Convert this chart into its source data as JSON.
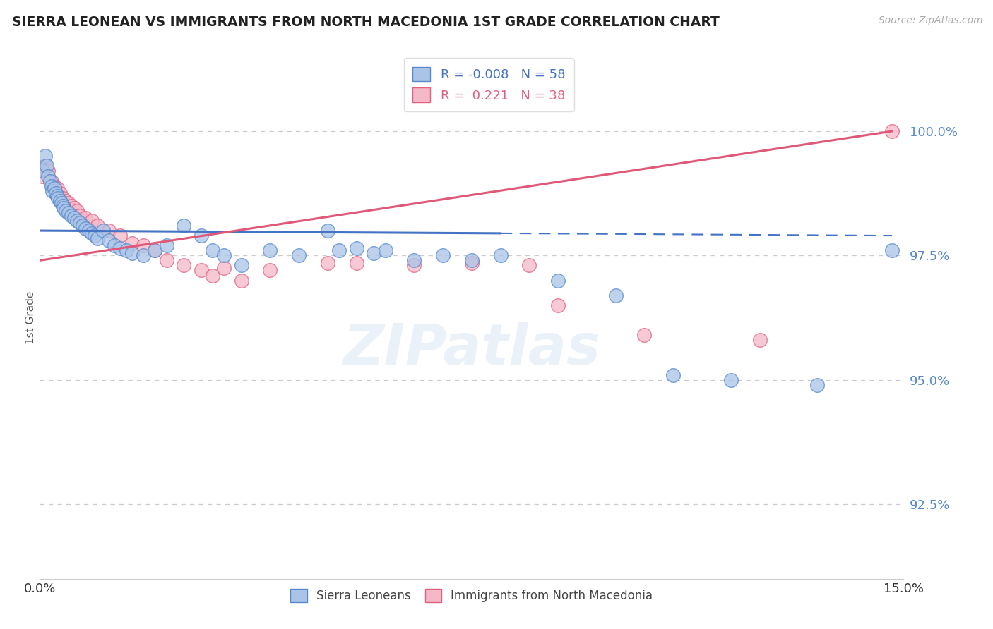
{
  "title": "SIERRA LEONEAN VS IMMIGRANTS FROM NORTH MACEDONIA 1ST GRADE CORRELATION CHART",
  "source": "Source: ZipAtlas.com",
  "ylabel": "1st Grade",
  "xlim": [
    0.0,
    15.0
  ],
  "ylim": [
    91.0,
    101.5
  ],
  "yticks": [
    92.5,
    95.0,
    97.5,
    100.0
  ],
  "ytick_labels": [
    "92.5%",
    "95.0%",
    "97.5%",
    "100.0%"
  ],
  "xtick_labels": [
    "0.0%",
    "15.0%"
  ],
  "blue_label": "Sierra Leoneans",
  "pink_label": "Immigrants from North Macedonia",
  "blue_R": -0.008,
  "blue_N": 58,
  "pink_R": 0.221,
  "pink_N": 38,
  "blue_color": "#aac4e8",
  "pink_color": "#f5b8c8",
  "blue_edge_color": "#5588cc",
  "pink_edge_color": "#e06080",
  "blue_line_color": "#4472c4",
  "pink_line_color": "#e05878",
  "background_color": "#ffffff",
  "watermark_text": "ZIPatlas",
  "blue_x": [
    0.05,
    0.1,
    0.12,
    0.15,
    0.18,
    0.2,
    0.22,
    0.25,
    0.28,
    0.3,
    0.32,
    0.35,
    0.38,
    0.4,
    0.42,
    0.45,
    0.5,
    0.55,
    0.6,
    0.65,
    0.7,
    0.75,
    0.8,
    0.85,
    0.9,
    0.95,
    1.0,
    1.1,
    1.2,
    1.3,
    1.4,
    1.5,
    1.6,
    1.8,
    2.0,
    2.2,
    2.5,
    2.8,
    3.0,
    3.2,
    3.5,
    4.0,
    4.5,
    5.0,
    5.2,
    5.5,
    5.8,
    6.0,
    6.5,
    7.0,
    7.5,
    8.0,
    9.0,
    10.0,
    11.0,
    12.0,
    13.5,
    14.8
  ],
  "blue_y": [
    99.2,
    99.5,
    99.3,
    99.1,
    99.0,
    98.9,
    98.8,
    98.85,
    98.75,
    98.7,
    98.65,
    98.6,
    98.55,
    98.5,
    98.45,
    98.4,
    98.35,
    98.3,
    98.25,
    98.2,
    98.15,
    98.1,
    98.05,
    98.0,
    97.95,
    97.9,
    97.85,
    98.0,
    97.8,
    97.7,
    97.65,
    97.6,
    97.55,
    97.5,
    97.6,
    97.7,
    98.1,
    97.9,
    97.6,
    97.5,
    97.3,
    97.6,
    97.5,
    98.0,
    97.6,
    97.65,
    97.55,
    97.6,
    97.4,
    97.5,
    97.4,
    97.5,
    97.0,
    96.7,
    95.1,
    95.0,
    94.9,
    97.6
  ],
  "pink_x": [
    0.05,
    0.1,
    0.15,
    0.2,
    0.25,
    0.3,
    0.35,
    0.4,
    0.45,
    0.5,
    0.55,
    0.6,
    0.65,
    0.7,
    0.8,
    0.9,
    1.0,
    1.2,
    1.4,
    1.6,
    1.8,
    2.0,
    2.2,
    2.5,
    2.8,
    3.0,
    3.2,
    3.5,
    4.0,
    5.0,
    5.5,
    6.5,
    7.5,
    8.5,
    9.0,
    10.5,
    12.5,
    14.8
  ],
  "pink_y": [
    99.1,
    99.3,
    99.2,
    99.0,
    98.9,
    98.85,
    98.75,
    98.65,
    98.6,
    98.55,
    98.5,
    98.45,
    98.4,
    98.3,
    98.25,
    98.2,
    98.1,
    98.0,
    97.9,
    97.75,
    97.7,
    97.6,
    97.4,
    97.3,
    97.2,
    97.1,
    97.25,
    97.0,
    97.2,
    97.35,
    97.35,
    97.3,
    97.35,
    97.3,
    96.5,
    95.9,
    95.8,
    100.0
  ],
  "blue_line_x": [
    0.0,
    14.8
  ],
  "blue_line_y": [
    98.0,
    97.9
  ],
  "blue_dash_start_x": 8.0,
  "pink_line_x": [
    0.0,
    14.8
  ],
  "pink_line_y": [
    97.4,
    100.0
  ]
}
